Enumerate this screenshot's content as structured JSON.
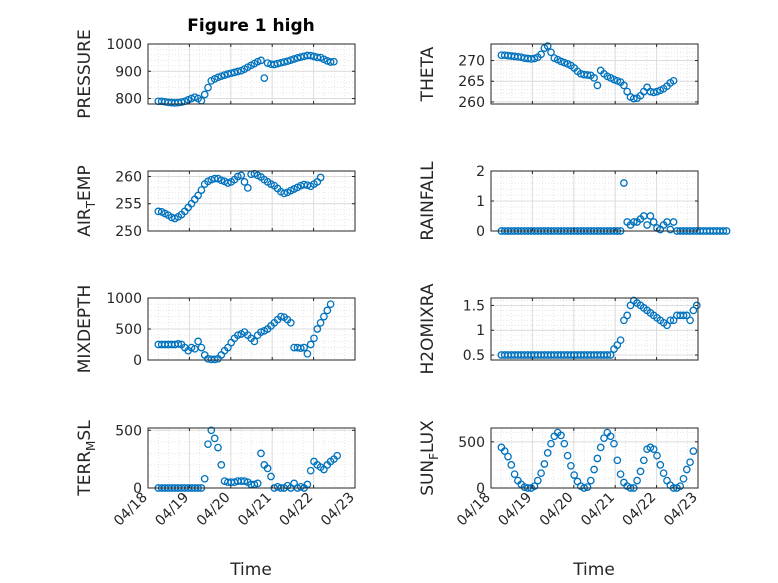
{
  "figure": {
    "title": "Figure 1 high",
    "xlabel": "Time"
  },
  "style": {
    "marker_color": "#0072BD",
    "axis_color": "#262626",
    "grid_color": "#dcdcdc",
    "background": "#ffffff"
  },
  "chart_data": [
    {
      "type": "scatter",
      "id": "pressure",
      "ylabel": "PRESSURE",
      "xlim": [
        "04/18",
        "04/23"
      ],
      "ylim": [
        780,
        1000
      ],
      "yticks": [
        800,
        900,
        1000
      ],
      "xticks": [
        "04/18",
        "04/19",
        "04/20",
        "04/21",
        "04/22",
        "04/23"
      ],
      "grid": true,
      "minor_grid": true,
      "x_start": "04/18 06:00",
      "x_step_days": 0.08,
      "y": [
        790,
        790,
        788,
        786,
        785,
        784,
        785,
        787,
        790,
        795,
        800,
        805,
        800,
        792,
        815,
        840,
        865,
        872,
        878,
        882,
        886,
        890,
        893,
        896,
        899,
        902,
        908,
        915,
        922,
        928,
        935,
        940,
        875,
        930,
        926,
        925,
        928,
        931,
        934,
        937,
        941,
        945,
        949,
        952,
        955,
        958,
        957,
        954,
        951,
        950,
        944,
        938,
        934,
        935
      ]
    },
    {
      "type": "scatter",
      "id": "theta",
      "ylabel": "THETA",
      "xlim": [
        "04/18",
        "04/23"
      ],
      "ylim": [
        259.5,
        274
      ],
      "yticks": [
        260,
        265,
        270
      ],
      "xticks": [
        "04/18",
        "04/19",
        "04/20",
        "04/21",
        "04/22",
        "04/23"
      ],
      "grid": true,
      "minor_grid": true,
      "x_start": "04/18 06:00",
      "x_step_days": 0.08,
      "y": [
        271.3,
        271.3,
        271.2,
        271.1,
        271,
        270.9,
        270.8,
        270.6,
        270.5,
        270.4,
        270.5,
        270.8,
        271.5,
        273,
        273.5,
        272,
        270.6,
        270.2,
        269.8,
        269.5,
        269.2,
        268.8,
        268.2,
        267.4,
        266.8,
        266.6,
        266.5,
        266.4,
        265.8,
        264,
        267.6,
        266.8,
        266.2,
        265.8,
        265.4,
        265.1,
        264.8,
        264,
        262.5,
        261.2,
        260.8,
        260.9,
        261.5,
        262.5,
        263.5,
        262.5,
        262.3,
        262.5,
        262.8,
        263.2,
        263.8,
        264.6,
        265.1
      ]
    },
    {
      "type": "scatter",
      "id": "air_temp",
      "ylabel": "AIR",
      "ylabel_sub": "T",
      "ylabel_rest": "EMP",
      "xlim": [
        "04/18",
        "04/23"
      ],
      "ylim": [
        250,
        261
      ],
      "yticks": [
        250,
        255,
        260
      ],
      "xticks": [
        "04/18",
        "04/19",
        "04/20",
        "04/21",
        "04/22",
        "04/23"
      ],
      "grid": true,
      "minor_grid": true,
      "x_start": "04/18 06:00",
      "x_step_days": 0.08,
      "y": [
        253.6,
        253.5,
        253.2,
        252.9,
        252.5,
        252.3,
        252.6,
        253,
        253.6,
        254.3,
        255,
        255.8,
        256.5,
        257.5,
        258.6,
        259.1,
        259.4,
        259.6,
        259.6,
        259.3,
        259.1,
        258.8,
        259,
        259.4,
        260,
        260.2,
        259,
        257.9,
        260.4,
        260.5,
        260.2,
        259.9,
        259.4,
        259,
        258.6,
        258.3,
        257.8,
        257.2,
        256.9,
        257.1,
        257.4,
        257.7,
        258,
        258.3,
        258.5,
        258.4,
        258.2,
        258.6,
        259,
        259.8
      ]
    },
    {
      "type": "scatter",
      "id": "rainfall",
      "ylabel": "RAINFALL",
      "xlim": [
        "04/18",
        "04/23"
      ],
      "ylim": [
        0,
        2
      ],
      "yticks": [
        0,
        1,
        2
      ],
      "xticks": [
        "04/18",
        "04/19",
        "04/20",
        "04/21",
        "04/22",
        "04/23"
      ],
      "grid": true,
      "minor_grid": true,
      "x_start": "04/18 06:00",
      "x_step_days": 0.08,
      "y": [
        0,
        0,
        0,
        0,
        0,
        0,
        0,
        0,
        0,
        0,
        0,
        0,
        0,
        0,
        0,
        0,
        0,
        0,
        0,
        0,
        0,
        0,
        0,
        0,
        0,
        0,
        0,
        0,
        0,
        0,
        0,
        0,
        0,
        0,
        0,
        0,
        0,
        1.6,
        0.3,
        0.2,
        0.3,
        0.3,
        0.4,
        0.5,
        0.2,
        0.5,
        0.3,
        0.1,
        0.05,
        0.2,
        0.3,
        0.05,
        0.3,
        0,
        0,
        0,
        0,
        0,
        0,
        0,
        0,
        0,
        0,
        0,
        0,
        0,
        0,
        0,
        0
      ]
    },
    {
      "type": "scatter",
      "id": "mixdepth",
      "ylabel": "MIXDEPTH",
      "xlim": [
        "04/18",
        "04/23"
      ],
      "ylim": [
        0,
        1000
      ],
      "yticks": [
        0,
        500,
        1000
      ],
      "xticks": [
        "04/18",
        "04/19",
        "04/20",
        "04/21",
        "04/22",
        "04/23"
      ],
      "grid": true,
      "minor_grid": true,
      "x_start": "04/18 06:00",
      "x_step_days": 0.08,
      "y": [
        250,
        250,
        250,
        250,
        250,
        250,
        260,
        250,
        200,
        150,
        200,
        180,
        300,
        200,
        80,
        20,
        10,
        10,
        20,
        80,
        150,
        200,
        280,
        350,
        400,
        420,
        450,
        400,
        350,
        300,
        400,
        450,
        470,
        500,
        550,
        600,
        650,
        700,
        690,
        650,
        600,
        200,
        200,
        190,
        200,
        100,
        250,
        350,
        500,
        600,
        700,
        800,
        900
      ]
    },
    {
      "type": "scatter",
      "id": "h2omixra",
      "ylabel": "H2OMIXRA",
      "xlim": [
        "04/18",
        "04/23"
      ],
      "ylim": [
        0.4,
        1.65
      ],
      "yticks": [
        0.5,
        1,
        1.5
      ],
      "xticks": [
        "04/18",
        "04/19",
        "04/20",
        "04/21",
        "04/22",
        "04/23"
      ],
      "grid": true,
      "minor_grid": true,
      "x_start": "04/18 06:00",
      "x_step_days": 0.08,
      "y": [
        0.5,
        0.5,
        0.5,
        0.5,
        0.5,
        0.5,
        0.5,
        0.5,
        0.5,
        0.5,
        0.5,
        0.5,
        0.5,
        0.5,
        0.5,
        0.5,
        0.5,
        0.5,
        0.5,
        0.5,
        0.5,
        0.5,
        0.5,
        0.5,
        0.5,
        0.5,
        0.5,
        0.5,
        0.5,
        0.5,
        0.5,
        0.5,
        0.5,
        0.5,
        0.62,
        0.7,
        0.8,
        1.2,
        1.3,
        1.5,
        1.6,
        1.55,
        1.5,
        1.45,
        1.4,
        1.35,
        1.3,
        1.25,
        1.2,
        1.15,
        1.1,
        1.2,
        1.2,
        1.3,
        1.3,
        1.3,
        1.3,
        1.2,
        1.4,
        1.5
      ]
    },
    {
      "type": "scatter",
      "id": "terr_msl",
      "ylabel": "TERR",
      "ylabel_sub": "M",
      "ylabel_rest": "SL",
      "xlim": [
        "04/18",
        "04/23"
      ],
      "ylim": [
        0,
        520
      ],
      "yticks": [
        0,
        500
      ],
      "xticks": [
        "04/18",
        "04/19",
        "04/20",
        "04/21",
        "04/22",
        "04/23"
      ],
      "grid": true,
      "minor_grid": true,
      "x_start": "04/18 06:00",
      "x_step_days": 0.08,
      "y": [
        0,
        0,
        0,
        0,
        0,
        0,
        0,
        0,
        0,
        0,
        0,
        0,
        0,
        0,
        80,
        380,
        500,
        430,
        350,
        200,
        60,
        50,
        50,
        50,
        60,
        60,
        60,
        50,
        30,
        30,
        40,
        300,
        200,
        170,
        100,
        0,
        10,
        0,
        0,
        20,
        0,
        40,
        0,
        10,
        0,
        30,
        150,
        230,
        200,
        180,
        160,
        200,
        230,
        250,
        280
      ]
    },
    {
      "type": "scatter",
      "id": "sun_flux",
      "ylabel": "SUN",
      "ylabel_sub": "F",
      "ylabel_rest": "LUX",
      "xlim": [
        "04/18",
        "04/23"
      ],
      "ylim": [
        0,
        650
      ],
      "yticks": [
        0,
        500
      ],
      "xticks": [
        "04/18",
        "04/19",
        "04/20",
        "04/21",
        "04/22",
        "04/23"
      ],
      "grid": true,
      "minor_grid": true,
      "x_start": "04/18 06:00",
      "x_step_days": 0.08,
      "y": [
        440,
        400,
        340,
        250,
        150,
        80,
        40,
        10,
        0,
        0,
        20,
        80,
        160,
        260,
        380,
        480,
        560,
        600,
        570,
        480,
        350,
        240,
        140,
        70,
        20,
        0,
        10,
        80,
        200,
        320,
        440,
        540,
        600,
        560,
        480,
        300,
        150,
        60,
        20,
        0,
        0,
        80,
        180,
        300,
        420,
        440,
        420,
        350,
        250,
        160,
        80,
        30,
        0,
        0,
        20,
        100,
        200,
        280,
        400
      ]
    }
  ]
}
